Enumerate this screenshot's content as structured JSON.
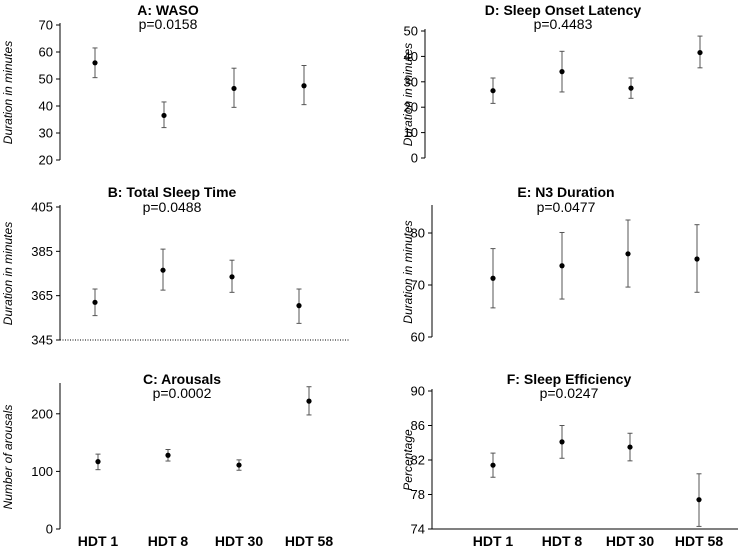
{
  "x_categories": [
    "HDT 1",
    "HDT 8",
    "HDT 30",
    "HDT 58"
  ],
  "chart_data": [
    {
      "id": "A",
      "type": "scatter",
      "title": "A: WASO",
      "subtitle": "p=0.0158",
      "ylabel": "Duration in minutes",
      "ylim": [
        20,
        70
      ],
      "yticks": [
        20,
        30,
        40,
        50,
        60,
        70
      ],
      "categories": [
        "HDT 1",
        "HDT 8",
        "HDT 30",
        "HDT 58"
      ],
      "values": [
        56,
        36.5,
        46.5,
        47.5
      ],
      "err_low": [
        50.5,
        32,
        39.5,
        40.5
      ],
      "err_high": [
        61.5,
        41.5,
        54,
        55
      ]
    },
    {
      "id": "B",
      "type": "scatter",
      "title": "B: Total Sleep Time",
      "subtitle": "p=0.0488",
      "ylabel": "Duration in minutes",
      "ylim": [
        345,
        405
      ],
      "yticks": [
        345,
        365,
        385,
        405
      ],
      "categories": [
        "HDT 1",
        "HDT 8",
        "HDT 30",
        "HDT 58"
      ],
      "values": [
        362,
        376.5,
        373.5,
        360.5
      ],
      "err_low": [
        356,
        367.5,
        366.5,
        352.5
      ],
      "err_high": [
        368,
        386,
        381,
        368
      ]
    },
    {
      "id": "C",
      "type": "scatter",
      "title": "C: Arousals",
      "subtitle": "p=0.0002",
      "ylabel": "Number of arousals",
      "ylim": [
        0,
        250
      ],
      "yticks": [
        0,
        100,
        200
      ],
      "categories": [
        "HDT 1",
        "HDT 8",
        "HDT 30",
        "HDT 58"
      ],
      "values": [
        117,
        128,
        111,
        222
      ],
      "err_low": [
        103,
        118,
        102,
        198
      ],
      "err_high": [
        130,
        138,
        120,
        247
      ]
    },
    {
      "id": "D",
      "type": "scatter",
      "title": "D: Sleep Onset Latency",
      "subtitle": "p=0.4483",
      "ylabel": "Duration in minutes",
      "ylim": [
        0,
        50
      ],
      "yticks": [
        0,
        10,
        20,
        30,
        40,
        50
      ],
      "categories": [
        "HDT 1",
        "HDT 8",
        "HDT 30",
        "HDT 58"
      ],
      "values": [
        26.5,
        34,
        27.5,
        41.5
      ],
      "err_low": [
        21.5,
        26,
        23.5,
        35.5
      ],
      "err_high": [
        31.5,
        42,
        31.5,
        48
      ]
    },
    {
      "id": "E",
      "type": "scatter",
      "title": "E: N3 Duration",
      "subtitle": "p=0.0477",
      "ylabel": "Duration in minutes",
      "ylim": [
        60,
        85
      ],
      "yticks": [
        60,
        70,
        80
      ],
      "categories": [
        "HDT 1",
        "HDT 8",
        "HDT 30",
        "HDT 58"
      ],
      "values": [
        71.3,
        73.7,
        76,
        75
      ],
      "err_low": [
        65.6,
        67.3,
        69.6,
        68.6
      ],
      "err_high": [
        77,
        80.1,
        82.5,
        81.6
      ]
    },
    {
      "id": "F",
      "type": "scatter",
      "title": "F: Sleep Efficiency",
      "subtitle": "p=0.0247",
      "ylabel": "Percentage",
      "ylim": [
        74,
        90
      ],
      "yticks": [
        74,
        78,
        82,
        86,
        90
      ],
      "categories": [
        "HDT 1",
        "HDT 8",
        "HDT 30",
        "HDT 58"
      ],
      "values": [
        81.4,
        84.1,
        83.5,
        77.4
      ],
      "err_low": [
        80,
        82.2,
        81.9,
        74.3
      ],
      "err_high": [
        82.8,
        86,
        85.1,
        80.4
      ]
    }
  ]
}
